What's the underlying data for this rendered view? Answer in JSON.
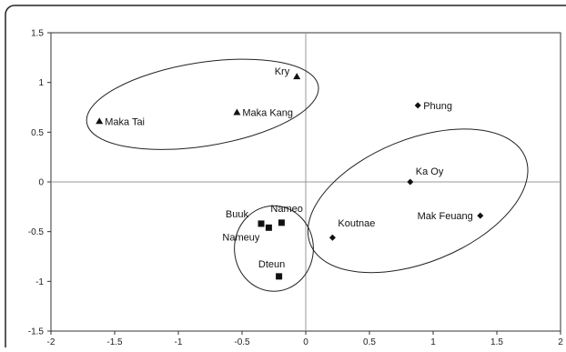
{
  "chart_data": {
    "type": "scatter",
    "title": "",
    "xlabel": "",
    "ylabel": "",
    "xlim": [
      -2,
      2
    ],
    "ylim": [
      -1.5,
      1.5
    ],
    "xticks": [
      -2,
      -1.5,
      -1,
      -0.5,
      0,
      0.5,
      1,
      1.5,
      2
    ],
    "yticks": [
      1.5,
      1,
      0.5,
      0,
      -0.5,
      -1,
      -1.5
    ],
    "xtick_labels": [
      "-2",
      "-1.5",
      "-1",
      "-0.5",
      "0",
      "0.5",
      "1",
      "1.5",
      "2"
    ],
    "ytick_labels": [
      "1.5",
      "1",
      "0.5",
      "0",
      "-0.5",
      "-1",
      "-1.5"
    ],
    "grid": false,
    "zero_lines": true,
    "series": [
      {
        "marker": "triangle",
        "color": "#111111",
        "points": [
          {
            "label": "Maka Tai",
            "x": -1.62,
            "y": 0.61
          },
          {
            "label": "Maka Kang",
            "x": -0.54,
            "y": 0.7
          },
          {
            "label": "Kry",
            "x": -0.07,
            "y": 1.06
          }
        ]
      },
      {
        "marker": "diamond",
        "color": "#111111",
        "points": [
          {
            "label": "Phung",
            "x": 0.88,
            "y": 0.77
          },
          {
            "label": "Ka Oy",
            "x": 0.82,
            "y": 0.0
          },
          {
            "label": "Mak Feuang",
            "x": 1.37,
            "y": -0.34
          },
          {
            "label": "Koutnae",
            "x": 0.21,
            "y": -0.56
          }
        ]
      },
      {
        "marker": "square",
        "color": "#111111",
        "points": [
          {
            "label": "Buuk",
            "x": -0.35,
            "y": -0.42
          },
          {
            "label": "Nameuy",
            "x": -0.29,
            "y": -0.46
          },
          {
            "label": "Nameo",
            "x": -0.19,
            "y": -0.41
          },
          {
            "label": "Dteun",
            "x": -0.21,
            "y": -0.95
          }
        ]
      }
    ],
    "ellipses": [
      {
        "group": "triangle",
        "cx": -0.81,
        "cy": 0.78,
        "rx": 0.92,
        "ry": 0.42,
        "rotate_deg": -9
      },
      {
        "group": "diamond",
        "cx": 0.88,
        "cy": -0.19,
        "rx": 0.91,
        "ry": 0.62,
        "rotate_deg": -22
      },
      {
        "group": "square",
        "cx": -0.25,
        "cy": -0.67,
        "rx": 0.31,
        "ry": 0.43,
        "rotate_deg": 0
      }
    ]
  }
}
